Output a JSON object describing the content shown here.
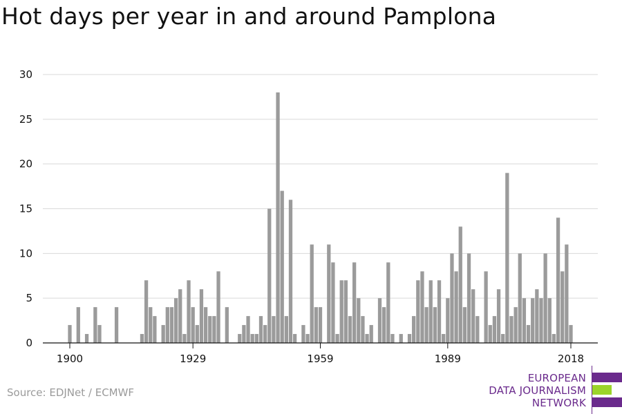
{
  "title": "Hot days per year in and around Pamplona",
  "source": "Source: EDJNet / ECMWF",
  "logo": {
    "line1": "EUROPEAN",
    "line2": "DATA JOURNALISM",
    "line3": "NETWORK",
    "colors": {
      "purple": "#6a2a8c",
      "green": "#9bd42a"
    }
  },
  "chart_data": {
    "type": "bar",
    "x_start": 1900,
    "x_end": 2018,
    "xticks": [
      "1900",
      "1929",
      "1959",
      "1989",
      "2018"
    ],
    "yticks": [
      "0",
      "5",
      "10",
      "15",
      "20",
      "25",
      "30"
    ],
    "ylim": [
      0,
      30
    ],
    "bar_color": "#9b9b9b",
    "grid": true,
    "values": [
      2,
      0,
      4,
      0,
      1,
      0,
      4,
      2,
      0,
      0,
      0,
      4,
      0,
      0,
      0,
      0,
      0,
      1,
      7,
      4,
      3,
      0,
      2,
      4,
      4,
      5,
      6,
      1,
      7,
      4,
      2,
      6,
      4,
      3,
      3,
      8,
      0,
      4,
      0,
      0,
      1,
      2,
      3,
      1,
      1,
      3,
      2,
      15,
      3,
      28,
      17,
      3,
      16,
      1,
      0,
      2,
      1,
      11,
      4,
      4,
      0,
      11,
      9,
      1,
      7,
      7,
      3,
      9,
      5,
      3,
      1,
      2,
      0,
      5,
      4,
      9,
      1,
      0,
      1,
      0,
      1,
      3,
      7,
      8,
      4,
      7,
      4,
      7,
      1,
      5,
      10,
      8,
      13,
      4,
      10,
      6,
      3,
      0,
      8,
      2,
      3,
      6,
      1,
      19,
      3,
      4,
      10,
      5,
      2,
      5,
      6,
      5,
      10,
      5,
      1,
      14,
      8,
      11,
      2
    ]
  }
}
